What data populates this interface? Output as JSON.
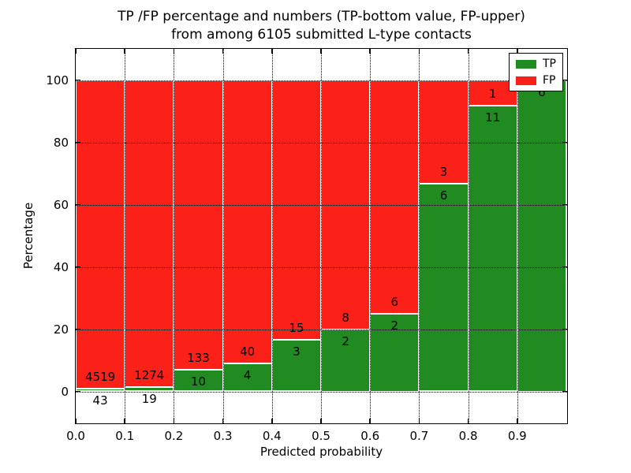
{
  "title": {
    "line1": "TP /FP percentage and numbers (TP-bottom value, FP-upper)",
    "line2": "from among 6105 submitted L-type contacts"
  },
  "xlabel": "Predicted probability",
  "ylabel": "Percentage",
  "legend": {
    "tp_label": "TP",
    "fp_label": "FP"
  },
  "colors": {
    "tp_green": "#218a21",
    "fp_red": "#fb2018",
    "bar_edge": "#ffffff",
    "grid": "#000000"
  },
  "chart_data": {
    "type": "bar",
    "stacked": true,
    "title": "TP /FP percentage and numbers (TP-bottom value, FP-upper) from among 6105 submitted L-type contacts",
    "xlabel": "Predicted probability",
    "ylabel": "Percentage",
    "total_submitted": 6105,
    "grid": "dotted black",
    "legend_position": "upper right",
    "xlim": [
      0.0,
      1.0
    ],
    "ylim": [
      -10,
      110
    ],
    "x_ticks": [
      "0.0",
      "0.1",
      "0.2",
      "0.3",
      "0.4",
      "0.5",
      "0.6",
      "0.7",
      "0.8",
      "0.9"
    ],
    "y_ticks": [
      "0",
      "20",
      "40",
      "60",
      "80",
      "100"
    ],
    "y_tick_values": [
      0,
      20,
      40,
      60,
      80,
      100
    ],
    "categories": [
      "0.0-0.1",
      "0.1-0.2",
      "0.2-0.3",
      "0.3-0.4",
      "0.4-0.5",
      "0.5-0.6",
      "0.6-0.7",
      "0.7-0.8",
      "0.8-0.9",
      "0.9-1.0"
    ],
    "series": [
      {
        "name": "TP",
        "color": "#218a21",
        "counts": [
          43,
          19,
          10,
          4,
          3,
          2,
          2,
          6,
          11,
          6
        ],
        "percent": [
          0.94,
          1.47,
          6.99,
          9.09,
          16.67,
          20.0,
          25.0,
          66.67,
          91.67,
          100.0
        ]
      },
      {
        "name": "FP",
        "color": "#fb2018",
        "counts": [
          4519,
          1274,
          133,
          40,
          15,
          8,
          6,
          3,
          1,
          0
        ],
        "percent": [
          99.06,
          98.53,
          93.01,
          90.91,
          83.33,
          80.0,
          75.0,
          33.33,
          8.33,
          0.0
        ]
      }
    ]
  }
}
